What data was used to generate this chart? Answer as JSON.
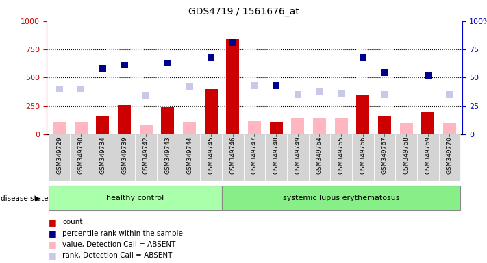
{
  "title": "GDS4719 / 1561676_at",
  "samples": [
    "GSM349729",
    "GSM349730",
    "GSM349734",
    "GSM349739",
    "GSM349742",
    "GSM349743",
    "GSM349744",
    "GSM349745",
    "GSM349746",
    "GSM349747",
    "GSM349748",
    "GSM349749",
    "GSM349764",
    "GSM349765",
    "GSM349766",
    "GSM349767",
    "GSM349768",
    "GSM349769",
    "GSM349770"
  ],
  "group1_label": "healthy control",
  "group2_label": "systemic lupus erythematosus",
  "group1_count": 8,
  "group2_count": 11,
  "count_values": [
    0,
    0,
    160,
    255,
    0,
    240,
    0,
    400,
    840,
    0,
    110,
    0,
    0,
    0,
    350,
    160,
    0,
    200,
    0
  ],
  "percentile_values": [
    0,
    0,
    580,
    610,
    0,
    630,
    0,
    680,
    810,
    0,
    430,
    0,
    0,
    0,
    680,
    545,
    0,
    520,
    0
  ],
  "value_absent": [
    110,
    110,
    0,
    0,
    75,
    0,
    110,
    0,
    0,
    120,
    0,
    140,
    140,
    140,
    0,
    0,
    105,
    0,
    95
  ],
  "rank_absent": [
    400,
    400,
    0,
    0,
    340,
    0,
    420,
    0,
    0,
    430,
    0,
    350,
    380,
    360,
    0,
    350,
    0,
    0,
    350
  ],
  "bar_color": "#cc0000",
  "percentile_color": "#00008b",
  "value_absent_color": "#ffb6c1",
  "rank_absent_color": "#c8c8e8",
  "bg_color": "#ffffff",
  "plot_bg": "#ffffff",
  "group1_bg": "#aaffaa",
  "group2_bg": "#88ee88",
  "left_axis_color": "#cc0000",
  "right_axis_color": "#0000cc",
  "ylim_left": [
    0,
    1000
  ],
  "yticks_left": [
    0,
    250,
    500,
    750,
    1000
  ],
  "yticks_right": [
    0,
    25,
    50,
    75,
    100
  ],
  "legend_items": [
    {
      "label": "count",
      "color": "#cc0000"
    },
    {
      "label": "percentile rank within the sample",
      "color": "#00008b"
    },
    {
      "label": "value, Detection Call = ABSENT",
      "color": "#ffb6c1"
    },
    {
      "label": "rank, Detection Call = ABSENT",
      "color": "#c8c8e8"
    }
  ]
}
